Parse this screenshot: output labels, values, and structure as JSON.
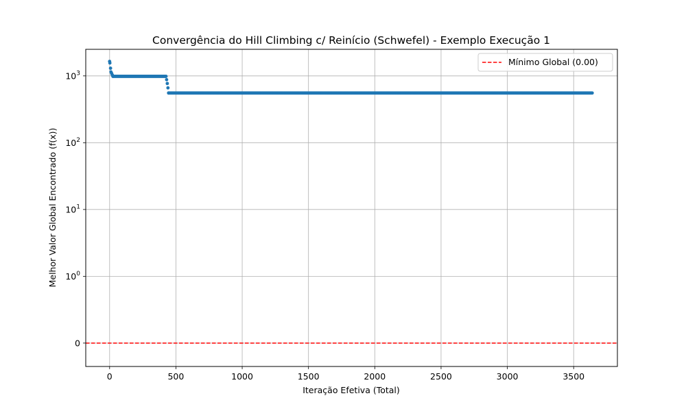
{
  "chart_data": {
    "type": "scatter",
    "title": "Convergência do Hill Climbing c/ Reinício (Schwefel) - Exemplo Execução 1",
    "xlabel": "Iteração Efetiva (Total)",
    "ylabel": "Melhor Valor Global Encontrado (f(x))",
    "xlim": [
      -180,
      3830
    ],
    "x_ticks": [
      0,
      500,
      1000,
      1500,
      2000,
      2500,
      3000,
      3500
    ],
    "y_scale": "symlog",
    "ylim": [
      -0.35,
      2500
    ],
    "y_ticks": [
      {
        "value": 0,
        "base": "0",
        "exp": ""
      },
      {
        "value": 1,
        "base": "10",
        "exp": "0"
      },
      {
        "value": 10,
        "base": "10",
        "exp": "1"
      },
      {
        "value": 100,
        "base": "10",
        "exp": "2"
      },
      {
        "value": 1000,
        "base": "10",
        "exp": "3"
      }
    ],
    "grid": true,
    "legend_position": "top-right",
    "series": [
      {
        "color": "#1f77b4",
        "segments": [
          {
            "x_start": 0,
            "x_end": 2,
            "y_start": 1650,
            "y_end": 1560
          },
          {
            "x_start": 2,
            "x_end": 10,
            "y_start": 1560,
            "y_end": 1150
          },
          {
            "x_start": 10,
            "x_end": 25,
            "y_start": 1150,
            "y_end": 985
          },
          {
            "x_start": 25,
            "x_end": 425,
            "y_start": 985,
            "y_end": 985
          },
          {
            "x_start": 425,
            "x_end": 445,
            "y_start": 985,
            "y_end": 555
          },
          {
            "x_start": 445,
            "x_end": 3640,
            "y_start": 555,
            "y_end": 555
          }
        ]
      }
    ],
    "reference_line": {
      "label": "Mínimo Global (0.00)",
      "y": 0,
      "color": "#ff0000",
      "style": "dashed"
    }
  }
}
